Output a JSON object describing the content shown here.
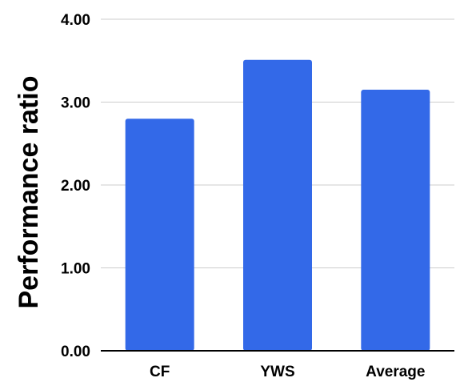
{
  "chart_data": {
    "type": "bar",
    "title": "",
    "xlabel": "",
    "ylabel": "Performance ratio",
    "categories": [
      "CF",
      "YWS",
      "Average"
    ],
    "values": [
      2.8,
      3.51,
      3.15
    ],
    "ylim": [
      0,
      4
    ],
    "yticks": [
      "0.00",
      "1.00",
      "2.00",
      "3.00",
      "4.00"
    ],
    "grid": true,
    "legend": "none",
    "bar_color": "#3369E8",
    "grid_color": "#cccccc",
    "axis_color": "#000000"
  }
}
